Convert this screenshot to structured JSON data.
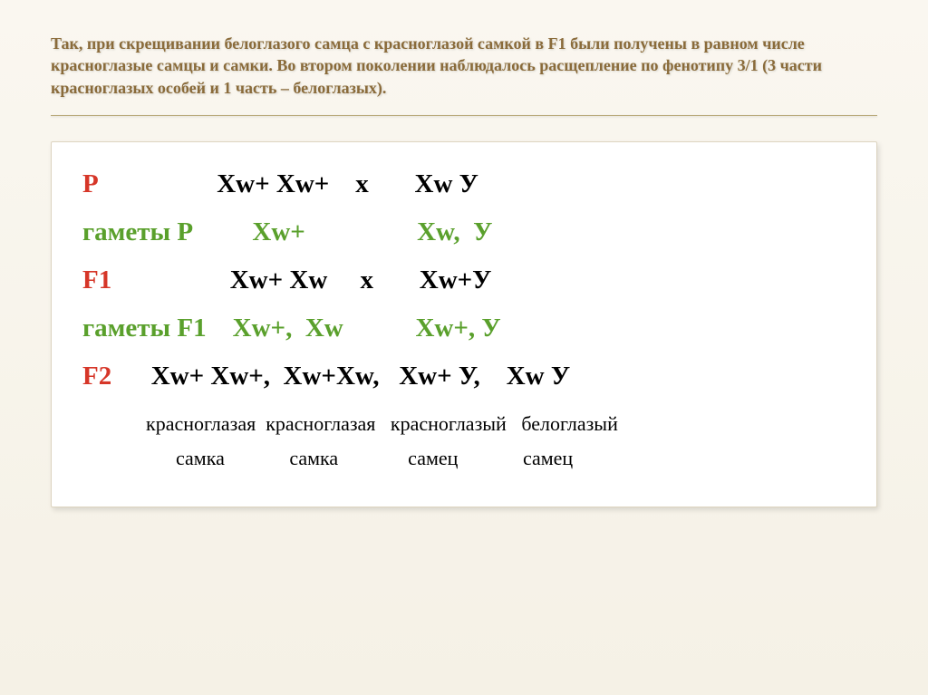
{
  "colors": {
    "slide_bg_top": "#faf7f0",
    "slide_bg_bottom": "#f5f1e6",
    "title_color": "#8a6b3a",
    "divider_color": "#b8a878",
    "content_bg": "#ffffff",
    "content_border": "#ddd4c0",
    "label_red": "#d63628",
    "label_green": "#5aa02c",
    "text_black": "#000000",
    "text_green": "#5aa02c"
  },
  "fontsizes": {
    "title": 18,
    "genetics_line": 29,
    "phenotype": 22
  },
  "title": "Так, при скрещивании белоглазого самца с красноглазой самкой в F1 были получены в равном числе красноглазые самцы и самки. Во втором поколении наблюдалось расщепление по фенотипу 3/1 (3 части красноглазых особей и 1 часть – белоглазых).",
  "lines": {
    "l1_label": "Р",
    "l1_rest": "                  Хw+ Хw+    х       Хw У",
    "l2_label": "гаметы Р",
    "l2_rest": "         Хw+                 Хw,  У",
    "l3_label": "F1",
    "l3_rest": "                  Хw+ Хw     х       Хw+У",
    "l4_label": "гаметы F1",
    "l4_rest": "    Хw+,  Хw           Хw+, У",
    "l5_label": "F2",
    "l5_rest": "      Хw+ Хw+,  Хw+Хw,   Хw+ У,    Хw У"
  },
  "pheno": {
    "row1": "красноглазая  красноглазая   красноглазый   белоглазый",
    "row2": "      самка             самка              самец             самец"
  }
}
